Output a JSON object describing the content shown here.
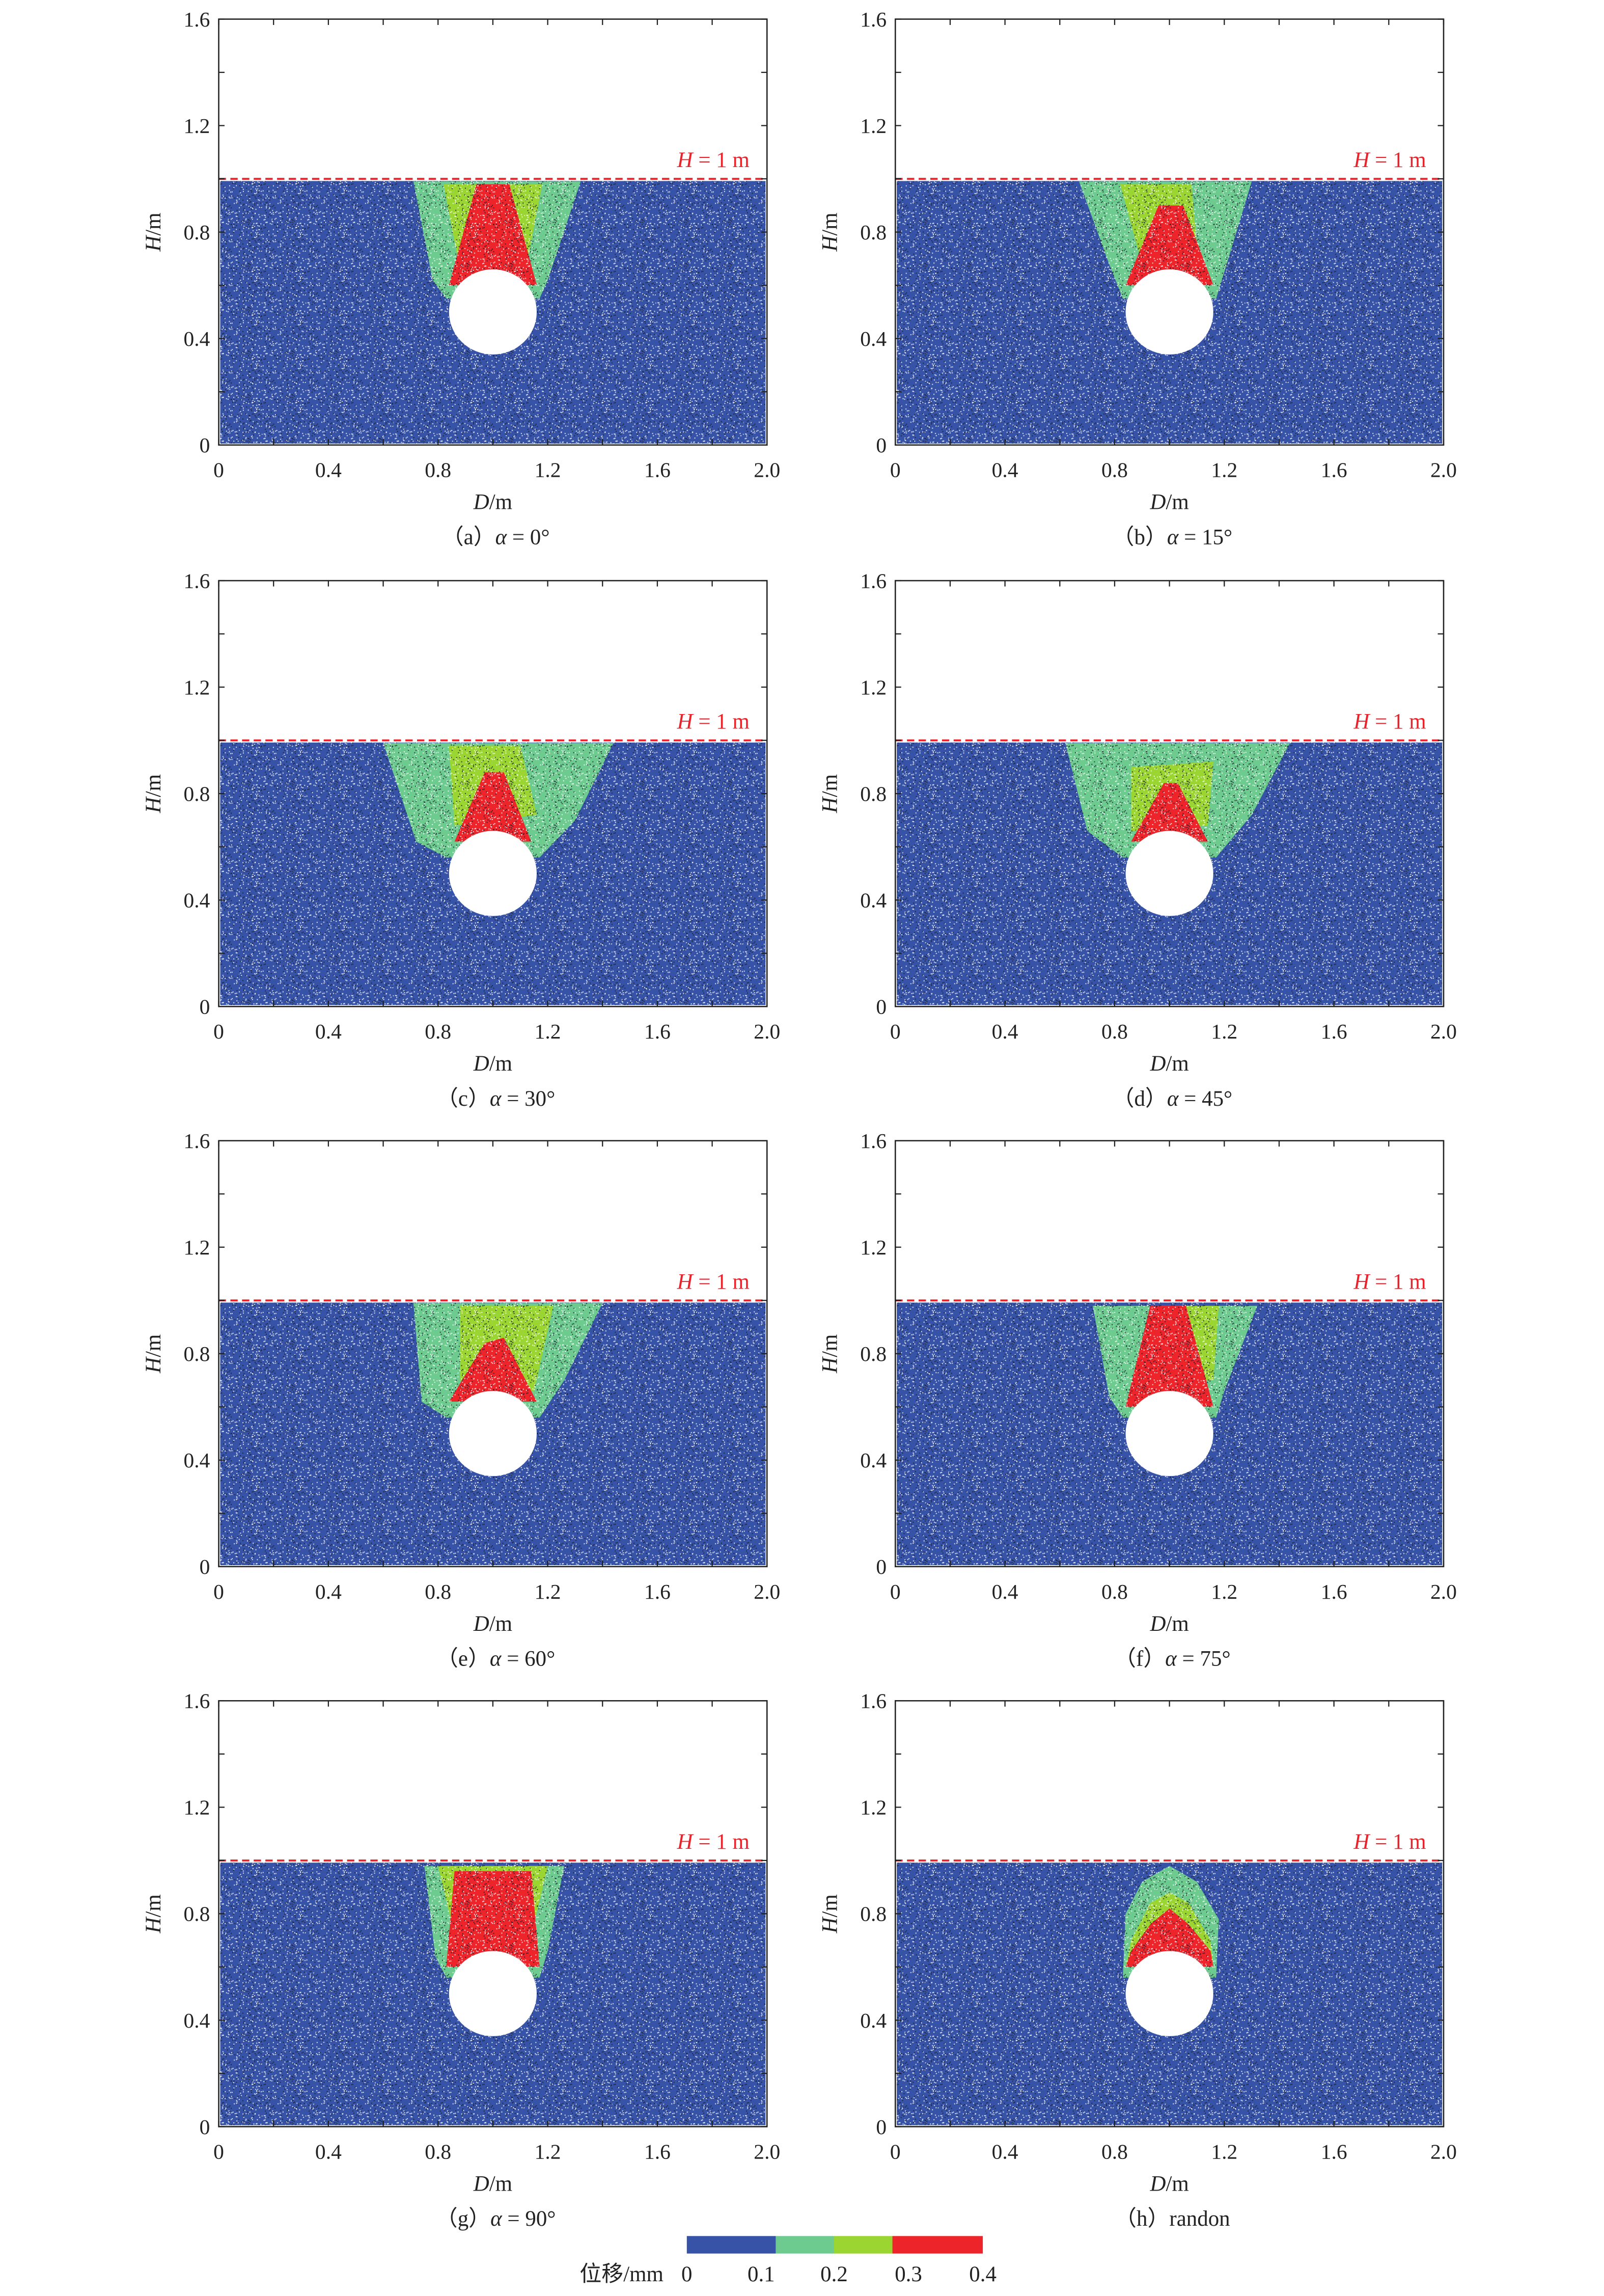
{
  "colors": {
    "zone0": "#3653a8",
    "zone1": "#6dcb90",
    "zone2": "#9bd531",
    "zone3": "#ee242b",
    "surface_line": "#e8232b"
  },
  "axes": {
    "xlabel_symbol": "D",
    "xlabel_unit": "/m",
    "ylabel_symbol": "H",
    "ylabel_unit": "/m",
    "xlim": [
      0,
      2.0
    ],
    "ylim": [
      0,
      1.6
    ],
    "xticks": [
      "0",
      "0.4",
      "0.8",
      "1.2",
      "1.6",
      "2.0"
    ],
    "yticks": [
      "0",
      "0.4",
      "0.8",
      "1.2",
      "1.6"
    ],
    "surface_label_symbol": "H",
    "surface_label_value": " = 1 m",
    "surface_height": 1.0,
    "tunnel": {
      "cx": 1.0,
      "cy": 0.5,
      "r": 0.16
    }
  },
  "legend": {
    "title": "位移/mm",
    "ticks": [
      "0",
      "0.1",
      "0.2",
      "0.3",
      "0.4"
    ],
    "bins": [
      [
        0,
        0.1
      ],
      [
        0.1,
        0.2
      ],
      [
        0.2,
        0.3
      ],
      [
        0.3,
        0.4
      ]
    ]
  },
  "chart_data": [
    {
      "type": "scatter",
      "prefix": "（a）",
      "symbol": "α",
      "value": " = 0°",
      "zones": {
        "green": [
          [
            0.71,
            0.99
          ],
          [
            1.32,
            0.99
          ],
          [
            1.2,
            0.62
          ],
          [
            1.17,
            0.55
          ],
          [
            0.83,
            0.55
          ],
          [
            0.78,
            0.62
          ]
        ],
        "yellow": [
          [
            0.82,
            0.98
          ],
          [
            1.18,
            0.98
          ],
          [
            1.12,
            0.66
          ],
          [
            0.88,
            0.66
          ]
        ],
        "red": [
          [
            0.94,
            0.98
          ],
          [
            1.06,
            0.98
          ],
          [
            1.16,
            0.6
          ],
          [
            0.84,
            0.6
          ]
        ]
      }
    },
    {
      "type": "scatter",
      "prefix": "（b）",
      "symbol": "α",
      "value": " = 15°",
      "zones": {
        "green": [
          [
            0.67,
            0.99
          ],
          [
            1.3,
            0.99
          ],
          [
            1.2,
            0.65
          ],
          [
            1.17,
            0.55
          ],
          [
            0.83,
            0.55
          ],
          [
            0.78,
            0.68
          ]
        ],
        "yellow": [
          [
            0.82,
            0.98
          ],
          [
            1.08,
            0.98
          ],
          [
            1.1,
            0.75
          ],
          [
            0.9,
            0.68
          ]
        ],
        "red": [
          [
            0.96,
            0.9
          ],
          [
            1.05,
            0.9
          ],
          [
            1.16,
            0.6
          ],
          [
            0.84,
            0.6
          ]
        ]
      }
    },
    {
      "type": "scatter",
      "prefix": "（c）",
      "symbol": "α",
      "value": " = 30°",
      "zones": {
        "green": [
          [
            0.6,
            0.99
          ],
          [
            1.44,
            0.99
          ],
          [
            1.3,
            0.7
          ],
          [
            1.17,
            0.56
          ],
          [
            0.83,
            0.56
          ],
          [
            0.72,
            0.62
          ]
        ],
        "yellow": [
          [
            0.84,
            0.98
          ],
          [
            1.1,
            0.98
          ],
          [
            1.16,
            0.72
          ],
          [
            0.86,
            0.68
          ]
        ],
        "red": [
          [
            0.97,
            0.88
          ],
          [
            1.04,
            0.88
          ],
          [
            1.14,
            0.62
          ],
          [
            0.86,
            0.62
          ]
        ]
      }
    },
    {
      "type": "scatter",
      "prefix": "（d）",
      "symbol": "α",
      "value": " = 45°",
      "zones": {
        "green": [
          [
            0.62,
            0.99
          ],
          [
            1.44,
            0.99
          ],
          [
            1.3,
            0.72
          ],
          [
            1.17,
            0.56
          ],
          [
            0.83,
            0.56
          ],
          [
            0.7,
            0.66
          ]
        ],
        "yellow": [
          [
            0.86,
            0.9
          ],
          [
            1.16,
            0.92
          ],
          [
            1.14,
            0.68
          ],
          [
            0.86,
            0.66
          ]
        ],
        "red": [
          [
            0.98,
            0.84
          ],
          [
            1.03,
            0.84
          ],
          [
            1.14,
            0.62
          ],
          [
            0.86,
            0.62
          ]
        ]
      }
    },
    {
      "type": "scatter",
      "prefix": "（e）",
      "symbol": "α",
      "value": " = 60°",
      "zones": {
        "green": [
          [
            0.71,
            0.99
          ],
          [
            1.4,
            0.99
          ],
          [
            1.26,
            0.7
          ],
          [
            1.17,
            0.56
          ],
          [
            0.83,
            0.56
          ],
          [
            0.74,
            0.62
          ]
        ],
        "yellow": [
          [
            0.88,
            0.98
          ],
          [
            1.22,
            0.98
          ],
          [
            1.15,
            0.66
          ],
          [
            0.88,
            0.7
          ]
        ],
        "red": [
          [
            0.97,
            0.84
          ],
          [
            1.04,
            0.86
          ],
          [
            1.16,
            0.62
          ],
          [
            0.84,
            0.62
          ]
        ]
      }
    },
    {
      "type": "scatter",
      "prefix": "（f）",
      "symbol": "α",
      "value": " = 75°",
      "zones": {
        "green": [
          [
            0.72,
            0.98
          ],
          [
            1.32,
            0.98
          ],
          [
            1.2,
            0.66
          ],
          [
            1.17,
            0.56
          ],
          [
            0.83,
            0.56
          ],
          [
            0.78,
            0.64
          ]
        ],
        "yellow": [
          [
            1.04,
            0.98
          ],
          [
            1.18,
            0.98
          ],
          [
            1.16,
            0.7
          ],
          [
            1.06,
            0.7
          ]
        ],
        "red": [
          [
            0.93,
            0.98
          ],
          [
            1.06,
            0.98
          ],
          [
            1.16,
            0.6
          ],
          [
            0.84,
            0.6
          ]
        ]
      }
    },
    {
      "type": "scatter",
      "prefix": "（g）",
      "symbol": "α",
      "value": " = 90°",
      "zones": {
        "green": [
          [
            0.75,
            0.98
          ],
          [
            1.26,
            0.98
          ],
          [
            1.2,
            0.66
          ],
          [
            1.17,
            0.56
          ],
          [
            0.83,
            0.56
          ],
          [
            0.79,
            0.64
          ]
        ],
        "yellow": [
          [
            0.8,
            0.98
          ],
          [
            1.2,
            0.98
          ],
          [
            1.14,
            0.72
          ],
          [
            0.86,
            0.72
          ]
        ],
        "red": [
          [
            0.86,
            0.96
          ],
          [
            1.14,
            0.96
          ],
          [
            1.17,
            0.6
          ],
          [
            0.83,
            0.6
          ]
        ]
      }
    },
    {
      "type": "scatter",
      "prefix": "（h）",
      "symbol": "",
      "value": "randon",
      "zones": {
        "green": [
          [
            0.84,
            0.8
          ],
          [
            0.9,
            0.92
          ],
          [
            1.0,
            0.98
          ],
          [
            1.1,
            0.92
          ],
          [
            1.18,
            0.78
          ],
          [
            1.17,
            0.56
          ],
          [
            0.83,
            0.56
          ]
        ],
        "yellow": [
          [
            0.86,
            0.7
          ],
          [
            0.93,
            0.84
          ],
          [
            1.0,
            0.88
          ],
          [
            1.07,
            0.84
          ],
          [
            1.15,
            0.7
          ],
          [
            1.16,
            0.6
          ],
          [
            0.84,
            0.6
          ]
        ],
        "red": [
          [
            0.86,
            0.66
          ],
          [
            0.93,
            0.76
          ],
          [
            1.0,
            0.82
          ],
          [
            1.07,
            0.76
          ],
          [
            1.15,
            0.66
          ],
          [
            1.16,
            0.6
          ],
          [
            0.84,
            0.6
          ]
        ]
      }
    }
  ]
}
